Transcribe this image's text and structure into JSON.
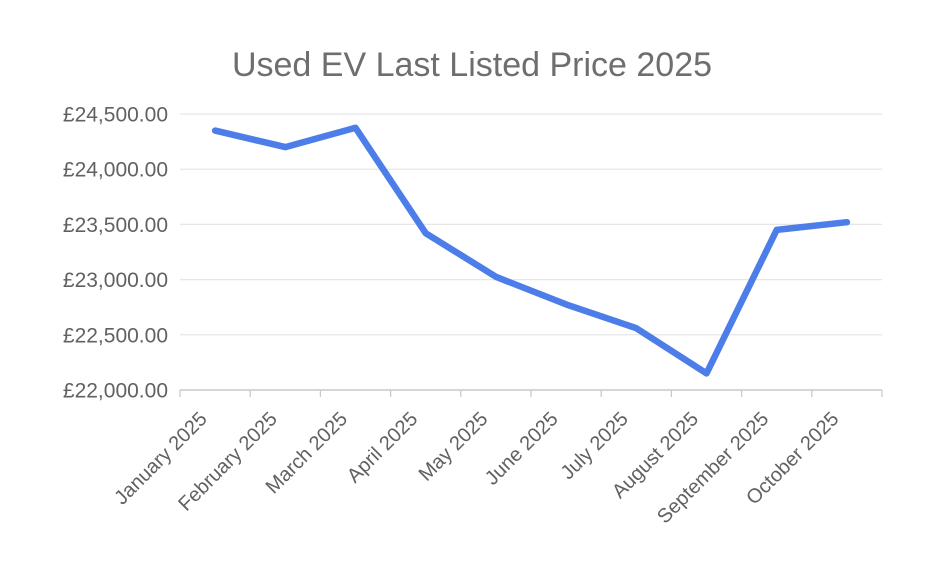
{
  "chart_data": {
    "type": "line",
    "title": "Used EV Last Listed Price 2025",
    "categories": [
      "January 2025",
      "February 2025",
      "March 2025",
      "April 2025",
      "May 2025",
      "June 2025",
      "July 2025",
      "August 2025",
      "September 2025",
      "October 2025"
    ],
    "values": [
      24350,
      24200,
      24375,
      23420,
      23025,
      22775,
      22560,
      22150,
      23450,
      23520
    ],
    "xlabel": "",
    "ylabel": "",
    "ylim": [
      22000,
      24500
    ],
    "y_tick_step": 500,
    "y_tick_labels": [
      "£22,000.00",
      "£22,500.00",
      "£23,000.00",
      "£23,500.00",
      "£24,000.00",
      "£24,500.00"
    ],
    "grid": true,
    "legend": "none",
    "colors": {
      "line": "#4c7de8",
      "title_text": "#6e6e6e",
      "axis_text": "#616161",
      "gridline": "#e6e6e6",
      "axis_line": "#c9c9c9",
      "background": "#ffffff"
    }
  }
}
